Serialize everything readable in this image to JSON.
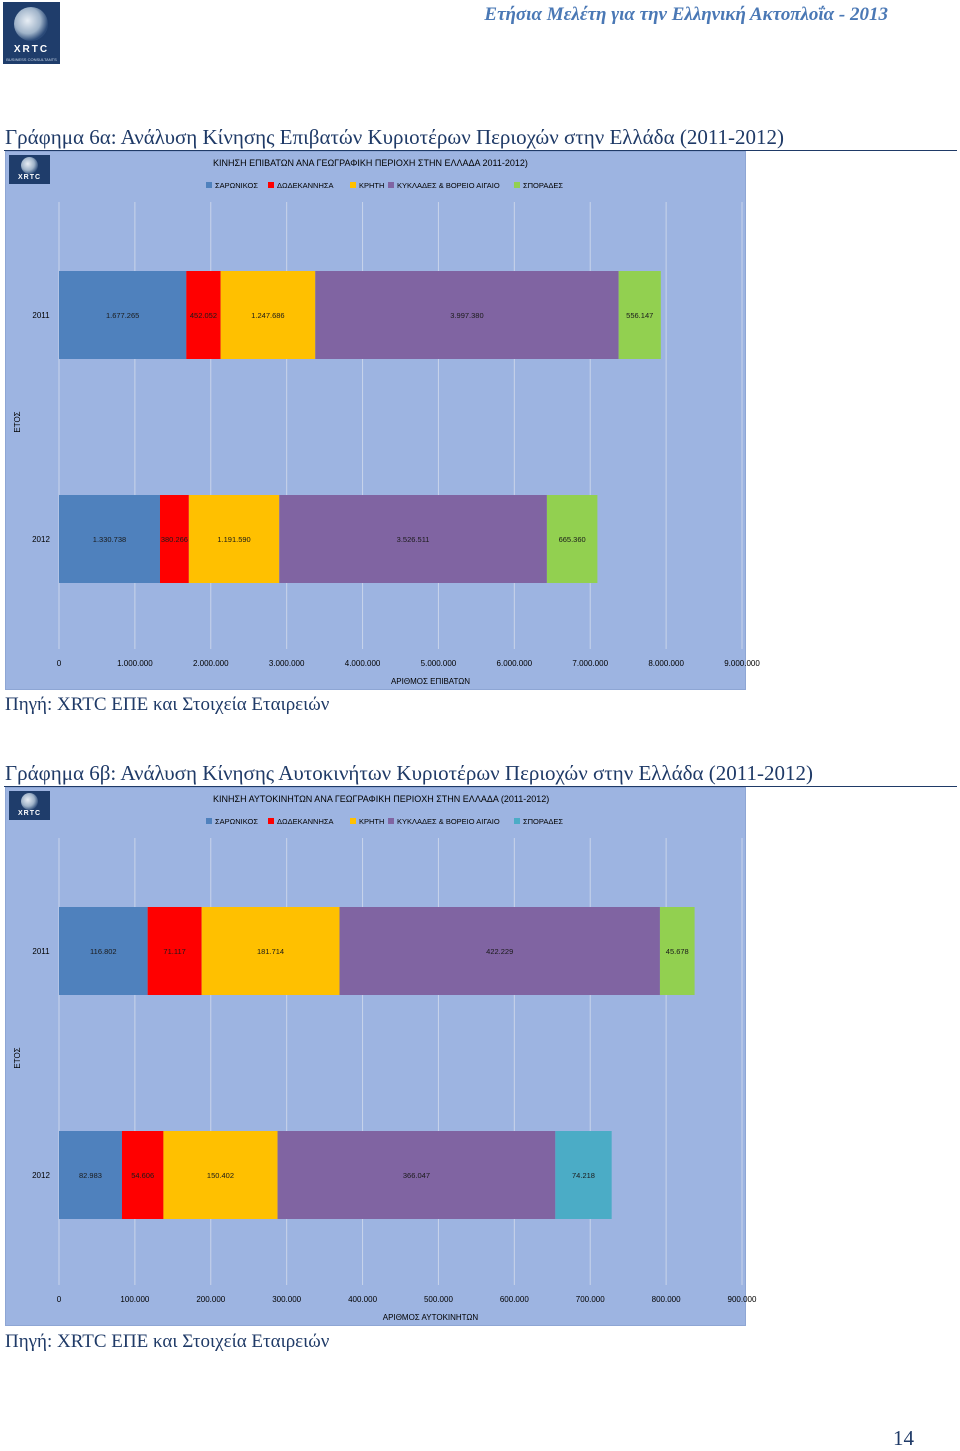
{
  "header": {
    "logo_text": "XRTC",
    "logo_subtext": "BUSINESS CONSULTANTS",
    "running_title": "Ετήσια Μελέτη για την Ελληνική Ακτοπλοΐα - 2013"
  },
  "figures": [
    {
      "caption": "Γράφημα 6α: Ανάλυση Κίνησης Επιβατών Κυριοτέρων Περιοχών στην Ελλάδα (2011-2012)",
      "source": "Πηγή: XRTC ΕΠΕ και Στοιχεία Εταιρειών"
    },
    {
      "caption": "Γράφημα 6β: Ανάλυση Κίνησης Αυτοκινήτων Κυριοτέρων Περιοχών στην Ελλάδα (2011-2012)",
      "source": "Πηγή: XRTC ΕΠΕ και Στοιχεία Εταιρειών"
    }
  ],
  "page_number": "14",
  "chart_data": [
    {
      "type": "bar",
      "orientation": "horizontal",
      "stacked": true,
      "title": "ΚΙΝΗΣΗ ΕΠΙΒΑΤΩΝ ΑΝΑ ΓΕΩΓΡΑΦΙΚΗ ΠΕΡΙΟΧΗ ΣΤΗΝ ΕΛΛΑΔΑ 2011-2012)",
      "xlabel": "ΑΡΙΘΜΟΣ ΕΠΙΒΑΤΩΝ",
      "ylabel": "ΕΤΟΣ",
      "xlim": [
        0,
        9000000
      ],
      "xticks": [
        "0",
        "1.000.000",
        "2.000.000",
        "3.000.000",
        "4.000.000",
        "5.000.000",
        "6.000.000",
        "7.000.000",
        "8.000.000",
        "9.000.000"
      ],
      "categories": [
        "2011",
        "2012"
      ],
      "series": [
        {
          "name": "ΣΑΡΩΝΙΚΟΣ",
          "color": "#4f81bd",
          "values": [
            1677265,
            1330738
          ],
          "labels": [
            "1.677.265",
            "1.330.738"
          ]
        },
        {
          "name": "ΔΩΔΕΚΑΝΝΗΣΑ",
          "color": "#ff0000",
          "values": [
            452052,
            380266
          ],
          "labels": [
            "452.052",
            "380.266"
          ]
        },
        {
          "name": "ΚΡΗΤΗ",
          "color": "#ffc000",
          "values": [
            1247686,
            1191590
          ],
          "labels": [
            "1.247.686",
            "1.191.590"
          ]
        },
        {
          "name": "ΚΥΚΛΑΔΕΣ & ΒΟΡΕΙΟ ΑΙΓΑΙΟ",
          "color": "#8064a2",
          "values": [
            3997380,
            3526511
          ],
          "labels": [
            "3.997.380",
            "3.526.511"
          ]
        },
        {
          "name": "ΣΠΟΡΑΔΕΣ",
          "color": "#92d050",
          "values": [
            556147,
            665360
          ],
          "labels": [
            "556.147",
            "665.360"
          ]
        }
      ],
      "legend": "top",
      "grid": true
    },
    {
      "type": "bar",
      "orientation": "horizontal",
      "stacked": true,
      "title": "ΚΙΝΗΣΗ ΑΥΤΟΚΙΝΗΤΩΝ ΑΝΑ ΓΕΩΓΡΑΦΙΚΗ ΠΕΡΙΟΧΗ ΣΤΗΝ ΕΛΛΑΔΑ (2011-2012)",
      "xlabel": "ΑΡΙΘΜΟΣ ΑΥΤΟΚΙΝΗΤΩΝ",
      "ylabel": "ΕΤΟΣ",
      "xlim": [
        0,
        900000
      ],
      "xticks": [
        "0",
        "100.000",
        "200.000",
        "300.000",
        "400.000",
        "500.000",
        "600.000",
        "700.000",
        "800.000",
        "900.000"
      ],
      "categories": [
        "2011",
        "2012"
      ],
      "series": [
        {
          "name": "ΣΑΡΩΝΙΚΟΣ",
          "color": "#4f81bd",
          "values": [
            116802,
            82983
          ],
          "labels": [
            "116.802",
            "82.983"
          ]
        },
        {
          "name": "ΔΩΔΕΚΑΝΝΗΣΑ",
          "color": "#ff0000",
          "values": [
            71117,
            54606
          ],
          "labels": [
            "71.117",
            "54.606"
          ]
        },
        {
          "name": "ΚΡΗΤΗ",
          "color": "#ffc000",
          "values": [
            181714,
            150402
          ],
          "labels": [
            "181.714",
            "150.402"
          ]
        },
        {
          "name": "ΚΥΚΛΑΔΕΣ & ΒΟΡΕΙΟ ΑΙΓΑΙΟ",
          "color": "#8064a2",
          "values": [
            422229,
            366047
          ],
          "labels": [
            "422.229",
            "366.047"
          ]
        },
        {
          "name": "ΣΠΟΡΑΔΕΣ",
          "color": "#4bacc6",
          "values": [
            45678,
            74218
          ],
          "labels": [
            "45.678",
            "74.218"
          ]
        }
      ],
      "point_colors": [
        [
          "#4f81bd",
          "#ff0000",
          "#ffc000",
          "#8064a2",
          "#92d050"
        ],
        [
          "#4f81bd",
          "#ff0000",
          "#ffc000",
          "#8064a2",
          "#4bacc6"
        ]
      ],
      "legend": "top",
      "grid": true
    }
  ]
}
